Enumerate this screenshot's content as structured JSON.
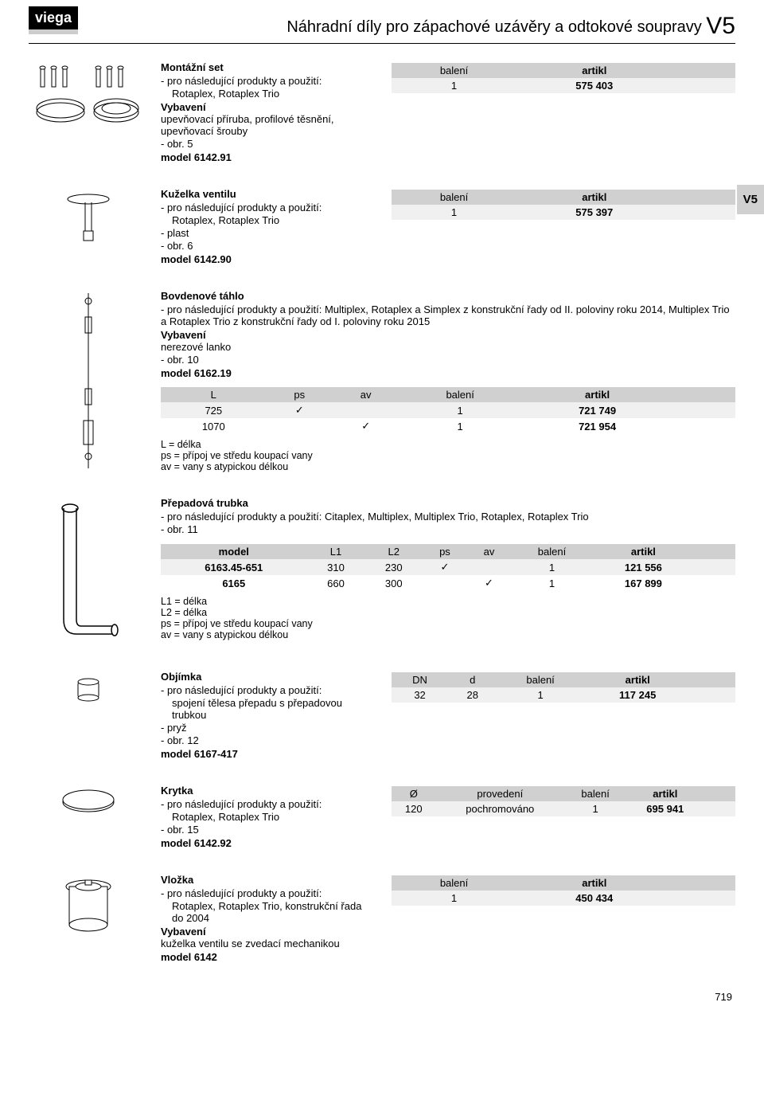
{
  "logo": "viega",
  "header": {
    "title": "Náhradní díly pro zápachové uzávěry a odtokové soupravy",
    "code": "V5"
  },
  "side_tab": "V5",
  "page_number": "719",
  "labels": {
    "usage": "pro následující produkty a použití:",
    "equipment": "Vybavení",
    "baleni": "balení",
    "artikl": "artikl",
    "model": "model"
  },
  "sections": [
    {
      "id": "montazni",
      "title": "Montážní set",
      "usage_lines": [
        "Rotaplex, Rotaplex Trio"
      ],
      "equipment_lines": [
        "upevňovací příruba, profilové těsnění, upevňovací šrouby"
      ],
      "extras": [
        "obr. 5"
      ],
      "model": "model 6142.91",
      "table": {
        "cols": [
          "balení",
          "artikl"
        ],
        "bold": [
          false,
          true
        ],
        "extra_cols": 2,
        "rows": [
          [
            "1",
            "575 403"
          ]
        ]
      }
    },
    {
      "id": "kuzelka",
      "title": "Kuželka ventilu",
      "usage_lines": [
        "Rotaplex, Rotaplex Trio"
      ],
      "extras": [
        "plast",
        "obr. 6"
      ],
      "model": "model 6142.90",
      "table": {
        "cols": [
          "balení",
          "artikl"
        ],
        "bold": [
          false,
          true
        ],
        "extra_cols": 2,
        "rows": [
          [
            "1",
            "575 397"
          ]
        ]
      }
    },
    {
      "id": "bovden",
      "title": "Bovdenové táhlo",
      "usage_inline": "pro následující produkty a použití: Multiplex, Rotaplex a Simplex z konstrukční řady od II. poloviny roku 2014, Multiplex Trio a Rotaplex Trio z konstrukční řady od I. poloviny roku 2015",
      "equipment_lines": [
        "nerezové lanko"
      ],
      "extras": [
        "obr. 10"
      ],
      "model": "model 6162.19",
      "table_full": {
        "cols": [
          "L",
          "ps",
          "av",
          "balení",
          "artikl"
        ],
        "bold": [
          false,
          false,
          false,
          false,
          true
        ],
        "extra_cols": 2,
        "rows": [
          [
            "725",
            "✓",
            "",
            "1",
            "721 749"
          ],
          [
            "1070",
            "",
            "✓",
            "1",
            "721 954"
          ]
        ]
      },
      "legend": [
        "L = délka",
        "ps = přípoj ve středu koupací vany",
        "av = vany s atypickou délkou"
      ]
    },
    {
      "id": "prepad",
      "title": "Přepadová trubka",
      "usage_inline": "pro následující produkty a použití: Citaplex, Multiplex, Multiplex Trio, Rotaplex, Rotaplex Trio",
      "extras": [
        "obr. 11"
      ],
      "table_full": {
        "cols": [
          "model",
          "L1",
          "L2",
          "ps",
          "av",
          "balení",
          "artikl"
        ],
        "bold": [
          true,
          false,
          false,
          false,
          false,
          false,
          true
        ],
        "extra_cols": 2,
        "rows": [
          [
            "6163.45-651",
            "310",
            "230",
            "✓",
            "",
            "1",
            "121 556"
          ],
          [
            "6165",
            "660",
            "300",
            "",
            "✓",
            "1",
            "167 899"
          ]
        ]
      },
      "legend": [
        "L1 = délka",
        "L2 = délka",
        "ps = přípoj ve středu koupací vany",
        "av = vany s atypickou délkou"
      ]
    },
    {
      "id": "objimka",
      "title": "Objímka",
      "usage_lines": [
        "spojení tělesa přepadu s přepadovou trubkou"
      ],
      "extras": [
        "pryž",
        "obr. 12"
      ],
      "model": "model 6167-417",
      "table": {
        "cols": [
          "DN",
          "d",
          "balení",
          "artikl"
        ],
        "bold": [
          false,
          false,
          false,
          true
        ],
        "extra_cols": 2,
        "rows": [
          [
            "32",
            "28",
            "1",
            "117 245"
          ]
        ]
      }
    },
    {
      "id": "krytka",
      "title": "Krytka",
      "usage_lines": [
        "Rotaplex, Rotaplex Trio"
      ],
      "extras": [
        "obr. 15"
      ],
      "model": "model 6142.92",
      "table": {
        "cols": [
          "Ø",
          "provedení",
          "balení",
          "artikl"
        ],
        "bold": [
          false,
          false,
          false,
          true
        ],
        "extra_cols": 2,
        "rows": [
          [
            "120",
            "pochromováno",
            "1",
            "695 941"
          ]
        ]
      }
    },
    {
      "id": "vlozka",
      "title": "Vložka",
      "usage_lines": [
        "Rotaplex, Rotaplex Trio, konstrukční řada do 2004"
      ],
      "equipment_lines": [
        "kuželka ventilu se zvedací mechanikou"
      ],
      "model": "model 6142",
      "table": {
        "cols": [
          "balení",
          "artikl"
        ],
        "bold": [
          false,
          true
        ],
        "extra_cols": 2,
        "rows": [
          [
            "1",
            "450 434"
          ]
        ]
      }
    }
  ],
  "icons": {
    "montazni": "<svg width='140' height='80' viewBox='0 0 140 80'><g stroke='#000' fill='none'><ellipse cx='35' cy='60' rx='30' ry='12'/><ellipse cx='35' cy='55' rx='30' ry='12'/><ellipse cx='105' cy='60' rx='28' ry='12'/><ellipse cx='105' cy='55' rx='28' ry='12'/><ellipse cx='105' cy='55' rx='18' ry='7'/></g><g stroke='#000' fill='#fff'><g><rect x='10' y='4' width='5' height='24'/><ellipse cx='12.5' cy='4' rx='3.5' ry='2'/></g><g transform='translate(14,0)'><rect x='10' y='4' width='5' height='24'/><ellipse cx='12.5' cy='4' rx='3.5' ry='2'/></g><g transform='translate(28,0)'><rect x='10' y='4' width='5' height='24'/><ellipse cx='12.5' cy='4' rx='3.5' ry='2'/></g><g transform='translate(70,0)'><rect x='10' y='4' width='5' height='24'/><ellipse cx='12.5' cy='4' rx='3.5' ry='2'/></g><g transform='translate(84,0)'><rect x='10' y='4' width='5' height='24'/><ellipse cx='12.5' cy='4' rx='3.5' ry='2'/></g><g transform='translate(98,0)'><rect x='10' y='4' width='5' height='24'/><ellipse cx='12.5' cy='4' rx='3.5' ry='2'/></g></g></svg>",
    "kuzelka": "<svg width='60' height='70' viewBox='0 0 60 70'><g stroke='#000' fill='#fff'><ellipse cx='30' cy='10' rx='26' ry='6'/><line x1='26' y1='14' x2='26' y2='50'/><line x1='34' y1='14' x2='34' y2='50'/><rect x='24' y='50' width='12' height='12'/></g></svg>",
    "bovden": "<svg width='40' height='220' viewBox='0 0 40 220'><g stroke='#000' fill='none'><line x1='20' y1='0' x2='20' y2='220'/><circle cx='20' cy='10' r='4'/><rect x='16' y='30' width='8' height='20'/><rect x='16' y='120' width='8' height='20'/><rect x='14' y='160' width='12' height='30'/><circle cx='20' cy='205' r='4'/></g></svg>",
    "prepad": "<svg width='90' height='180' viewBox='0 0 90 180'><g stroke='#000' fill='#fff' stroke-width='1.5'><ellipse cx='22' cy='10' rx='10' ry='5'/><path d='M14 10 L14 150 Q14 168 30 168 L78 168' fill='none'/><path d='M30 10 L30 150 Q30 158 36 158 L78 158' fill='none'/><ellipse cx='78' cy='163' rx='4' ry='7'/></g></svg>",
    "objimka": "<svg width='50' height='40' viewBox='0 0 50 40'><g stroke='#000' fill='#fff'><rect x='12' y='10' width='26' height='20' rx='3'/><ellipse cx='25' cy='10' rx='13' ry='4'/><ellipse cx='25' cy='30' rx='13' ry='4'/></g></svg>",
    "krytka": "<svg width='70' height='35' viewBox='0 0 70 35'><g stroke='#000' fill='#fff'><ellipse cx='35' cy='18' rx='32' ry='12'/><ellipse cx='35' cy='15' rx='32' ry='12'/></g></svg>",
    "vlozka": "<svg width='65' height='75' viewBox='0 0 65 75'><g stroke='#000' fill='#fff'><ellipse cx='32' cy='12' rx='28' ry='8'/><rect x='8' y='12' width='48' height='48'/><ellipse cx='32' cy='60' rx='24' ry='8'/><ellipse cx='32' cy='12' rx='16' ry='5'/><rect x='28' y='4' width='8' height='6'/></g></svg>"
  }
}
